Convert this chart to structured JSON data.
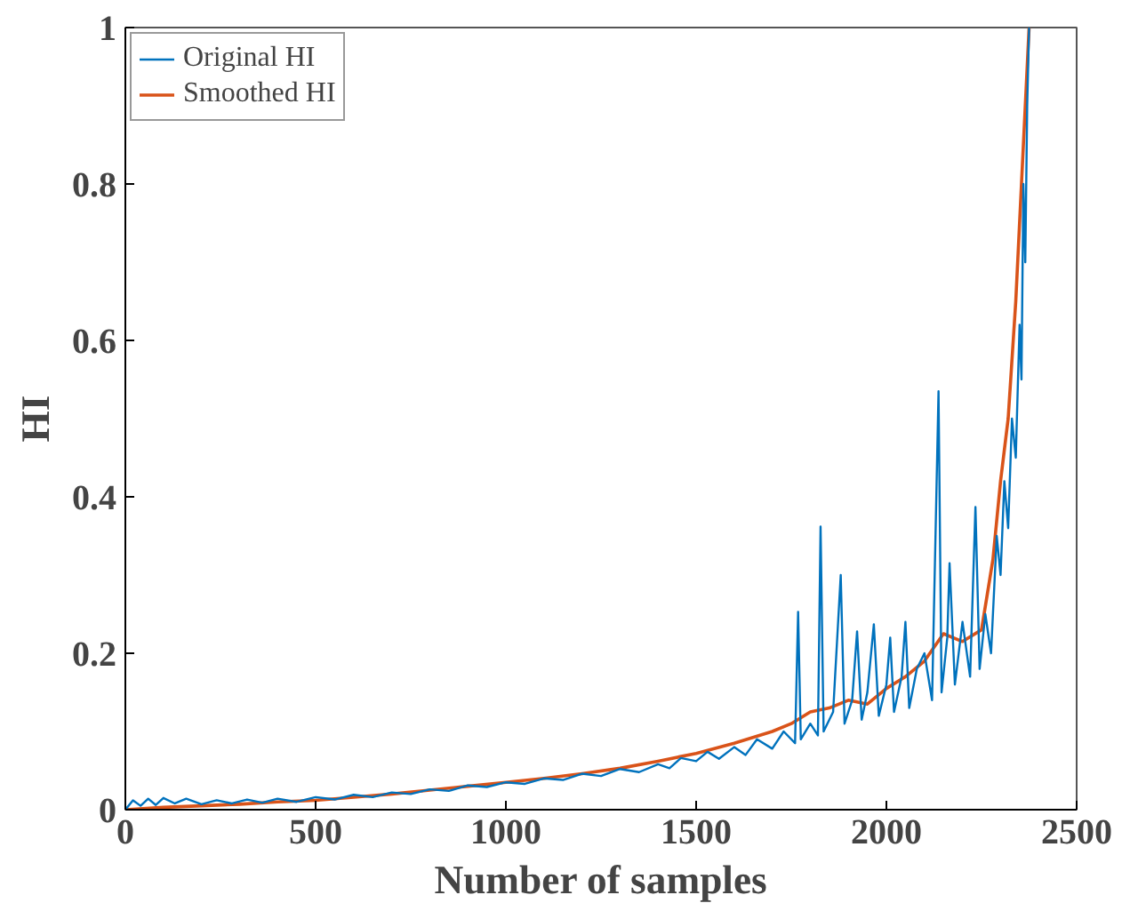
{
  "chart_data": {
    "type": "line",
    "xlabel": "Number of samples",
    "ylabel": "HI",
    "xlim": [
      0,
      2500
    ],
    "ylim": [
      0,
      1
    ],
    "xticks": [
      0,
      500,
      1000,
      1500,
      2000,
      2500
    ],
    "yticks": [
      0,
      0.2,
      0.4,
      0.6,
      0.8,
      1
    ],
    "grid": false,
    "legend": "top left",
    "line_style": "solid",
    "marker": "none",
    "series": [
      {
        "name": "Original HI",
        "color": "#0072bd",
        "x": [
          0,
          20,
          40,
          60,
          80,
          100,
          130,
          160,
          200,
          240,
          280,
          320,
          360,
          400,
          450,
          500,
          550,
          600,
          650,
          700,
          750,
          800,
          850,
          900,
          950,
          1000,
          1050,
          1100,
          1150,
          1200,
          1250,
          1300,
          1350,
          1400,
          1430,
          1460,
          1500,
          1530,
          1560,
          1600,
          1630,
          1660,
          1700,
          1730,
          1760,
          1768,
          1775,
          1800,
          1820,
          1827,
          1835,
          1860,
          1880,
          1890,
          1910,
          1923,
          1935,
          1950,
          1967,
          1980,
          2000,
          2010,
          2020,
          2040,
          2050,
          2060,
          2080,
          2100,
          2120,
          2137,
          2145,
          2160,
          2166,
          2180,
          2200,
          2220,
          2234,
          2245,
          2260,
          2275,
          2290,
          2300,
          2310,
          2320,
          2330,
          2340,
          2350,
          2355,
          2360,
          2365,
          2370,
          2375
        ],
        "values": [
          0,
          0.012,
          0.005,
          0.014,
          0.006,
          0.015,
          0.008,
          0.014,
          0.007,
          0.012,
          0.008,
          0.013,
          0.009,
          0.014,
          0.01,
          0.016,
          0.013,
          0.019,
          0.016,
          0.022,
          0.02,
          0.026,
          0.024,
          0.031,
          0.029,
          0.035,
          0.033,
          0.04,
          0.038,
          0.046,
          0.043,
          0.052,
          0.048,
          0.058,
          0.053,
          0.066,
          0.062,
          0.074,
          0.065,
          0.08,
          0.07,
          0.09,
          0.078,
          0.1,
          0.085,
          0.253,
          0.09,
          0.11,
          0.095,
          0.362,
          0.1,
          0.125,
          0.3,
          0.11,
          0.14,
          0.228,
          0.115,
          0.15,
          0.237,
          0.12,
          0.16,
          0.22,
          0.125,
          0.17,
          0.24,
          0.13,
          0.18,
          0.2,
          0.14,
          0.535,
          0.15,
          0.22,
          0.315,
          0.16,
          0.24,
          0.17,
          0.387,
          0.18,
          0.25,
          0.2,
          0.35,
          0.3,
          0.42,
          0.36,
          0.5,
          0.45,
          0.62,
          0.55,
          0.8,
          0.7,
          0.9,
          1.0
        ]
      },
      {
        "name": "Smoothed HI",
        "color": "#d95319",
        "x": [
          0,
          100,
          200,
          300,
          400,
          500,
          600,
          700,
          800,
          900,
          1000,
          1100,
          1200,
          1300,
          1400,
          1500,
          1600,
          1700,
          1750,
          1800,
          1850,
          1900,
          1950,
          2000,
          2050,
          2100,
          2150,
          2200,
          2250,
          2280,
          2300,
          2320,
          2340,
          2360,
          2375
        ],
        "values": [
          0,
          0.003,
          0.005,
          0.007,
          0.01,
          0.012,
          0.016,
          0.02,
          0.025,
          0.03,
          0.035,
          0.04,
          0.046,
          0.053,
          0.062,
          0.072,
          0.085,
          0.1,
          0.11,
          0.125,
          0.13,
          0.14,
          0.135,
          0.155,
          0.17,
          0.19,
          0.225,
          0.215,
          0.23,
          0.32,
          0.42,
          0.5,
          0.65,
          0.85,
          1.0
        ]
      }
    ]
  }
}
